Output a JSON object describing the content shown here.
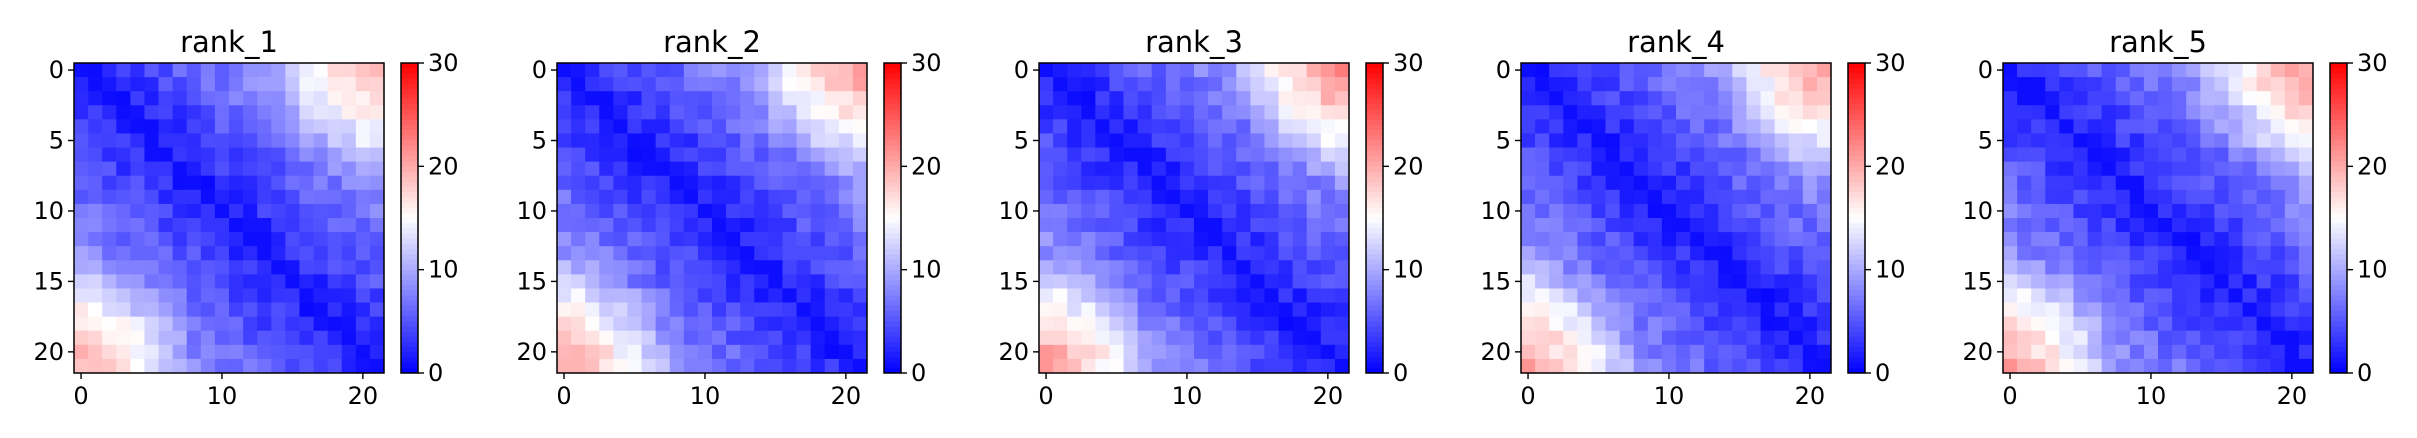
{
  "chart_data": [
    {
      "type": "heatmap",
      "title": "rank_1",
      "size": 22,
      "xticks": [
        0,
        10,
        20
      ],
      "yticks": [
        0,
        5,
        10,
        15,
        20
      ],
      "colorbar": {
        "min": 0,
        "max": 30,
        "ticks": [
          0,
          10,
          20,
          30
        ]
      },
      "colormap": [
        "#0000ff",
        "#ffffff",
        "#ff0000"
      ],
      "matrix_model": {
        "base": 1.5,
        "slope": 0.55,
        "max_distance_value": 13,
        "corner_value": 21,
        "corner_decay": 8
      }
    },
    {
      "type": "heatmap",
      "title": "rank_2",
      "size": 22,
      "xticks": [
        0,
        10,
        20
      ],
      "yticks": [
        0,
        5,
        10,
        15,
        20
      ],
      "colorbar": {
        "min": 0,
        "max": 30,
        "ticks": [
          0,
          10,
          20,
          30
        ]
      },
      "colormap": [
        "#0000ff",
        "#ffffff",
        "#ff0000"
      ],
      "matrix_model": {
        "base": 1.5,
        "slope": 0.55,
        "max_distance_value": 13,
        "corner_value": 22,
        "corner_decay": 8
      }
    },
    {
      "type": "heatmap",
      "title": "rank_3",
      "size": 22,
      "xticks": [
        0,
        10,
        20
      ],
      "yticks": [
        0,
        5,
        10,
        15,
        20
      ],
      "colorbar": {
        "min": 0,
        "max": 30,
        "ticks": [
          0,
          10,
          20,
          30
        ]
      },
      "colormap": [
        "#0000ff",
        "#ffffff",
        "#ff0000"
      ],
      "matrix_model": {
        "base": 1.5,
        "slope": 0.55,
        "max_distance_value": 13,
        "corner_value": 23,
        "corner_decay": 8
      }
    },
    {
      "type": "heatmap",
      "title": "rank_4",
      "size": 22,
      "xticks": [
        0,
        10,
        20
      ],
      "yticks": [
        0,
        5,
        10,
        15,
        20
      ],
      "colorbar": {
        "min": 0,
        "max": 30,
        "ticks": [
          0,
          10,
          20,
          30
        ]
      },
      "colormap": [
        "#0000ff",
        "#ffffff",
        "#ff0000"
      ],
      "matrix_model": {
        "base": 1.5,
        "slope": 0.55,
        "max_distance_value": 13,
        "corner_value": 22,
        "corner_decay": 8
      }
    },
    {
      "type": "heatmap",
      "title": "rank_5",
      "size": 22,
      "xticks": [
        0,
        10,
        20
      ],
      "yticks": [
        0,
        5,
        10,
        15,
        20
      ],
      "colorbar": {
        "min": 0,
        "max": 30,
        "ticks": [
          0,
          10,
          20,
          30
        ]
      },
      "colormap": [
        "#0000ff",
        "#ffffff",
        "#ff0000"
      ],
      "matrix_model": {
        "base": 1.5,
        "slope": 0.55,
        "max_distance_value": 13,
        "corner_value": 22,
        "corner_decay": 8
      }
    }
  ]
}
